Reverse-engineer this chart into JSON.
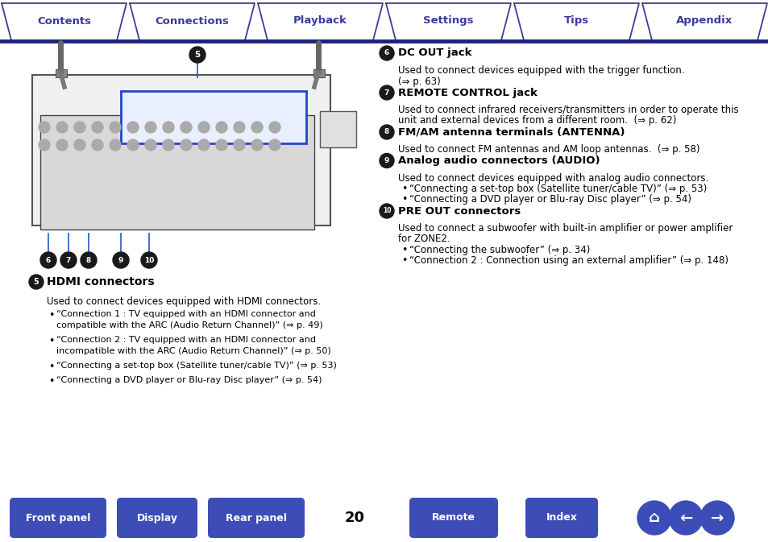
{
  "bg_color": "#ffffff",
  "header_tabs": [
    "Contents",
    "Connections",
    "Playback",
    "Settings",
    "Tips",
    "Appendix"
  ],
  "header_tab_color": "#3333aa",
  "header_line_color": "#1a237e",
  "footer_buttons": [
    "Front panel",
    "Display",
    "Rear panel",
    "Remote",
    "Index"
  ],
  "footer_page_number": "20",
  "footer_button_color": "#3d4db7",
  "left_section": {
    "num": "5",
    "title": "HDMI connectors",
    "body": "Used to connect devices equipped with HDMI connectors.",
    "bullets": [
      "“Connection 1 : TV equipped with an HDMI connector and\n   compatible with the ARC (Audio Return Channel)” (⇒ p. 49)",
      "“Connection 2 : TV equipped with an HDMI connector and\n   incompatible with the ARC (Audio Return Channel)” (⇒ p. 50)",
      "“Connecting a set-top box (Satellite tuner/cable TV)” (⇒ p. 53)",
      "“Connecting a DVD player or Blu-ray Disc player” (⇒ p. 54)"
    ]
  },
  "right_sections": [
    {
      "num": "6",
      "title": "DC OUT jack",
      "lines": [
        "Used to connect devices equipped with the trigger function.",
        "(⇒ p. 63)"
      ],
      "bullets": []
    },
    {
      "num": "7",
      "title": "REMOTE CONTROL jack",
      "lines": [
        "Used to connect infrared receivers/transmitters in order to operate this",
        "unit and external devices from a different room.  (⇒ p. 62)"
      ],
      "bullets": []
    },
    {
      "num": "8",
      "title": "FM/AM antenna terminals (ANTENNA)",
      "lines": [
        "Used to connect FM antennas and AM loop antennas.  (⇒ p. 58)"
      ],
      "bullets": []
    },
    {
      "num": "9",
      "title": "Analog audio connectors (AUDIO)",
      "lines": [
        "Used to connect devices equipped with analog audio connectors."
      ],
      "bullets": [
        "“Connecting a set-top box (Satellite tuner/cable TV)” (⇒ p. 53)",
        "“Connecting a DVD player or Blu-ray Disc player” (⇒ p. 54)"
      ]
    },
    {
      "num": "10",
      "title": "PRE OUT connectors",
      "lines": [
        "Used to connect a subwoofer with built-in amplifier or power amplifier",
        "for ZONE2."
      ],
      "bullets": [
        "“Connecting the subwoofer” (⇒ p. 34)",
        "“Connection 2 : Connection using an external amplifier” (⇒ p. 148)"
      ]
    }
  ],
  "tab_color": "#3b3b9e",
  "circle_color": "#1a1a1a",
  "text_color": "#000000",
  "link_color": "#000000"
}
